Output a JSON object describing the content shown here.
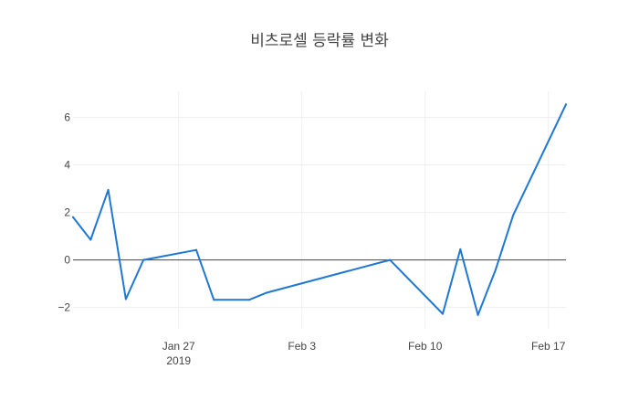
{
  "chart_data": {
    "type": "line",
    "title": "비츠로셀 등락률 변화",
    "xlabel": "",
    "ylabel": "",
    "x_type": "date",
    "xlim": [
      "2019-01-21",
      "2019-02-18"
    ],
    "ylim": [
      -2.9,
      7.1
    ],
    "grid": true,
    "legend": "none",
    "x_ticks": [
      {
        "date": "2019-01-27",
        "label": "Jan 27",
        "sublabel": "2019"
      },
      {
        "date": "2019-02-03",
        "label": "Feb 3",
        "sublabel": ""
      },
      {
        "date": "2019-02-10",
        "label": "Feb 10",
        "sublabel": ""
      },
      {
        "date": "2019-02-17",
        "label": "Feb 17",
        "sublabel": ""
      }
    ],
    "y_ticks": [
      {
        "value": -2,
        "label": "−2"
      },
      {
        "value": 0,
        "label": "0"
      },
      {
        "value": 2,
        "label": "2"
      },
      {
        "value": 4,
        "label": "4"
      },
      {
        "value": 6,
        "label": "6"
      }
    ],
    "series": [
      {
        "color": "#1f77d4",
        "x": [
          "2019-01-21",
          "2019-01-22",
          "2019-01-23",
          "2019-01-24",
          "2019-01-25",
          "2019-01-28",
          "2019-01-29",
          "2019-01-31",
          "2019-02-01",
          "2019-02-08",
          "2019-02-11",
          "2019-02-12",
          "2019-02-13",
          "2019-02-14",
          "2019-02-15",
          "2019-02-18"
        ],
        "y": [
          1.8,
          0.85,
          2.95,
          -1.65,
          0.0,
          0.42,
          -1.68,
          -1.68,
          -1.38,
          0.0,
          -2.27,
          0.45,
          -2.32,
          -0.42,
          1.88,
          6.55
        ]
      }
    ]
  }
}
